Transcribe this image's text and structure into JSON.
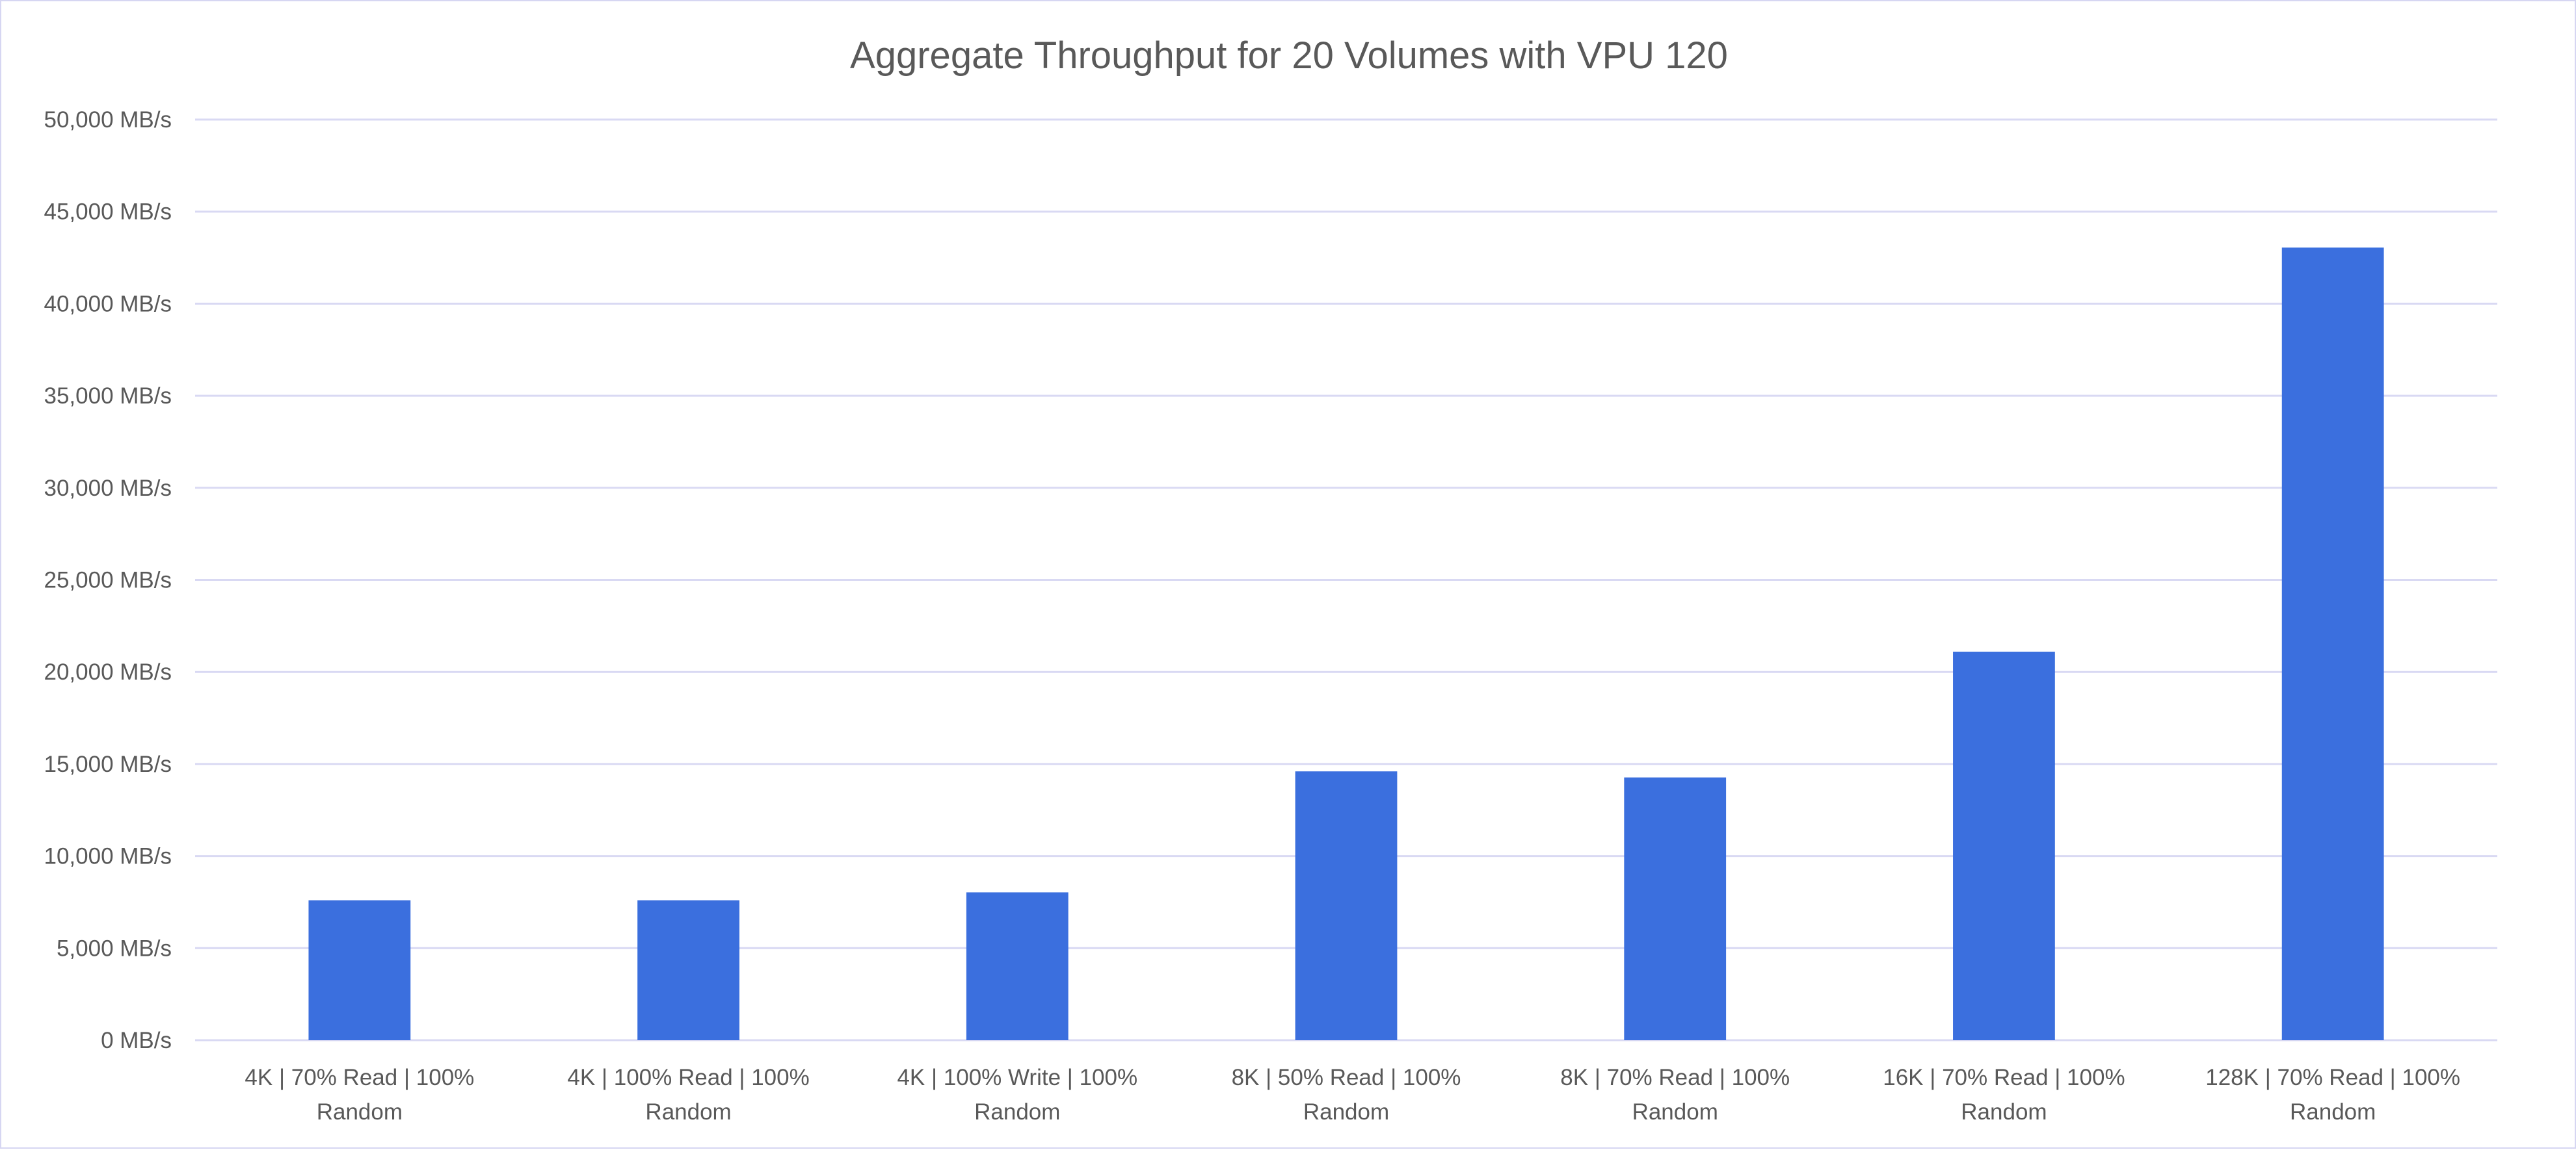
{
  "chart_data": {
    "type": "bar",
    "title": "Aggregate Throughput for 20 Volumes with VPU 120",
    "xlabel": "",
    "ylabel": "",
    "categories": [
      [
        "4K | 70% Read | 100%",
        "Random"
      ],
      [
        "4K | 100% Read | 100%",
        "Random"
      ],
      [
        "4K | 100% Write | 100%",
        "Random"
      ],
      [
        "8K | 50% Read | 100%",
        "Random"
      ],
      [
        "8K | 70% Read | 100%",
        "Random"
      ],
      [
        "16K | 70% Read | 100%",
        "Random"
      ],
      [
        "128K | 70% Read | 100%",
        "Random"
      ]
    ],
    "values": [
      7600,
      7600,
      8030,
      14600,
      14270,
      21100,
      43050
    ],
    "unit": "MB/s",
    "ylim": [
      0,
      50000
    ],
    "yticks": [
      0,
      5000,
      10000,
      15000,
      20000,
      25000,
      30000,
      35000,
      40000,
      45000,
      50000
    ],
    "ytick_labels": [
      "0 MB/s",
      "5,000 MB/s",
      "10,000 MB/s",
      "15,000 MB/s",
      "20,000 MB/s",
      "25,000 MB/s",
      "30,000 MB/s",
      "35,000 MB/s",
      "40,000 MB/s",
      "45,000 MB/s",
      "50,000 MB/s"
    ],
    "grid": true,
    "legend": "none",
    "colors": {
      "bar": "#3B6FDE",
      "grid": "#D9D9F3",
      "text": "#595959"
    }
  }
}
